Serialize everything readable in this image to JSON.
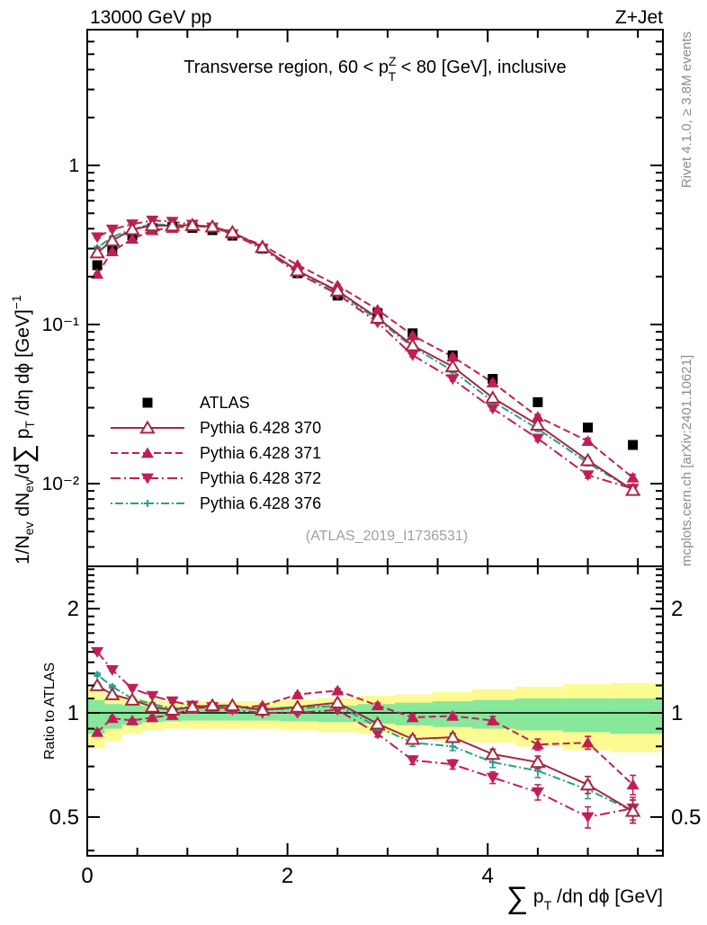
{
  "header": {
    "left": "13000 GeV pp",
    "right": "Z+Jet"
  },
  "side_texts": {
    "top": "Rivet 4.1.0, ≥ 3.8M events",
    "bottom": "mcplots.cern.ch [arXiv:2401.10621]"
  },
  "watermark": "(ATLAS_2019_I1736531)",
  "title_parts": {
    "pre": "Transverse region, 60 < p",
    "sup": "Z",
    "sub": "T",
    "post": " < 80 [GeV], inclusive"
  },
  "ylabel_parts": {
    "p1": "1/N",
    "s1": "ev",
    "p2": " dN",
    "s2": "ev",
    "p3": "/d",
    "sum": "∑",
    "p4": " p",
    "s3": "T",
    "p5": " /dη dϕ  [GeV]",
    "sup": "−1"
  },
  "ratio_ylabel": "Ratio to ATLAS",
  "xlabel_parts": {
    "sum": "∑",
    "p": " p",
    "sub": "T",
    "post": " /dη dϕ [GeV]"
  },
  "colors": {
    "atlas": "#000000",
    "p370": "#a4293f",
    "p371": "#c21e56",
    "p372": "#c21e56",
    "p376": "#26a08f",
    "band_yellow": "#fbfb91",
    "band_green": "#87e79b",
    "gray_text": "#8c8c8c"
  },
  "chart_data": {
    "type": "line",
    "title": "Transverse region, 60 < pT(Z) < 80 [GeV], inclusive",
    "xlabel": "sum pT /deta dphi [GeV]",
    "ylabel_main": "1/Nev dNev/d sum pT /deta dphi [GeV]^-1",
    "ylabel_ratio": "Ratio to ATLAS",
    "xlim": [
      0,
      5.75
    ],
    "ylim_main": [
      0.003,
      7.1
    ],
    "ylim_ratio": [
      0.39,
      2.65
    ],
    "yscale": "log",
    "xticks_labeled": [
      0,
      2,
      4
    ],
    "xtick_step": 0.5,
    "yticks_main": [
      {
        "v": 1,
        "label": "1"
      },
      {
        "v": 0.1,
        "label": "10⁻¹"
      },
      {
        "v": 0.01,
        "label": "10⁻²"
      }
    ],
    "yticks_ratio": [
      {
        "v": 2,
        "label": "2"
      },
      {
        "v": 1,
        "label": "1"
      },
      {
        "v": 0.5,
        "label": "0.5"
      }
    ],
    "x": [
      0.1,
      0.25,
      0.45,
      0.65,
      0.85,
      1.05,
      1.25,
      1.45,
      1.75,
      2.1,
      2.5,
      2.9,
      3.25,
      3.65,
      4.05,
      4.5,
      5.0,
      5.45
    ],
    "bin_edges": [
      0,
      0.175,
      0.35,
      0.55,
      0.75,
      0.95,
      1.15,
      1.35,
      1.6,
      1.925,
      2.3,
      2.7,
      3.075,
      3.45,
      3.85,
      4.275,
      4.75,
      5.225,
      5.75
    ],
    "ratio_err": [
      0.015,
      0.012,
      0.01,
      0.01,
      0.01,
      0.01,
      0.01,
      0.01,
      0.01,
      0.012,
      0.015,
      0.018,
      0.02,
      0.022,
      0.025,
      0.03,
      0.035,
      0.04
    ],
    "bands": {
      "yellow": [
        [
          0.79,
          1.18
        ],
        [
          0.83,
          1.13
        ],
        [
          0.87,
          1.1
        ],
        [
          0.89,
          1.09
        ],
        [
          0.9,
          1.08
        ],
        [
          0.9,
          1.08
        ],
        [
          0.9,
          1.08
        ],
        [
          0.9,
          1.08
        ],
        [
          0.9,
          1.08
        ],
        [
          0.89,
          1.09
        ],
        [
          0.88,
          1.1
        ],
        [
          0.87,
          1.12
        ],
        [
          0.85,
          1.13
        ],
        [
          0.83,
          1.15
        ],
        [
          0.82,
          1.17
        ],
        [
          0.8,
          1.19
        ],
        [
          0.78,
          1.21
        ],
        [
          0.77,
          1.22
        ]
      ],
      "green": [
        [
          0.87,
          1.09
        ],
        [
          0.9,
          1.06
        ],
        [
          0.925,
          1.05
        ],
        [
          0.94,
          1.045
        ],
        [
          0.945,
          1.04
        ],
        [
          0.95,
          1.04
        ],
        [
          0.95,
          1.04
        ],
        [
          0.95,
          1.04
        ],
        [
          0.95,
          1.04
        ],
        [
          0.945,
          1.045
        ],
        [
          0.94,
          1.05
        ],
        [
          0.93,
          1.06
        ],
        [
          0.92,
          1.07
        ],
        [
          0.91,
          1.08
        ],
        [
          0.9,
          1.09
        ],
        [
          0.89,
          1.1
        ],
        [
          0.88,
          1.1
        ],
        [
          0.87,
          1.1
        ]
      ]
    },
    "series": [
      {
        "id": "atlas",
        "label": "ATLAS",
        "marker": "square-filled",
        "line": "none",
        "values": [
          0.236,
          0.298,
          0.363,
          0.403,
          0.41,
          0.405,
          0.392,
          0.362,
          0.3,
          0.21,
          0.152,
          0.118,
          0.088,
          0.064,
          0.0455,
          0.0325,
          0.0225,
          0.0175
        ]
      },
      {
        "id": "p370",
        "label": "Pythia 6.428 370",
        "marker": "triangle-open",
        "line": "solid",
        "dash": "",
        "values": [
          0.283,
          0.337,
          0.396,
          0.419,
          0.418,
          0.421,
          0.412,
          0.38,
          0.306,
          0.218,
          0.163,
          0.11,
          0.0739,
          0.0544,
          0.0346,
          0.0234,
          0.014,
          0.0091
        ],
        "ratio": [
          1.2,
          1.13,
          1.09,
          1.04,
          1.02,
          1.04,
          1.05,
          1.05,
          1.02,
          1.04,
          1.07,
          0.93,
          0.84,
          0.85,
          0.76,
          0.72,
          0.62,
          0.52
        ]
      },
      {
        "id": "p371",
        "label": "Pythia 6.428 371",
        "marker": "triangle-filled",
        "line": "dashed",
        "dash": "8,4",
        "values": [
          0.208,
          0.288,
          0.345,
          0.391,
          0.404,
          0.417,
          0.408,
          0.373,
          0.315,
          0.237,
          0.176,
          0.124,
          0.0854,
          0.0627,
          0.0432,
          0.0263,
          0.0185,
          0.0109
        ],
        "ratio": [
          0.88,
          0.965,
          0.95,
          0.97,
          0.985,
          1.03,
          1.04,
          1.03,
          1.05,
          1.13,
          1.16,
          1.05,
          0.97,
          0.98,
          0.95,
          0.81,
          0.82,
          0.62
        ]
      },
      {
        "id": "p372",
        "label": "Pythia 6.428 372",
        "marker": "triangle-down-filled",
        "line": "dashdot",
        "dash": "11,4,2,4",
        "values": [
          0.354,
          0.396,
          0.427,
          0.451,
          0.443,
          0.425,
          0.408,
          0.369,
          0.3,
          0.21,
          0.155,
          0.103,
          0.0642,
          0.0454,
          0.0296,
          0.0192,
          0.0113,
          0.0093
        ],
        "ratio": [
          1.5,
          1.33,
          1.175,
          1.12,
          1.08,
          1.05,
          1.04,
          1.02,
          1.0,
          1.0,
          1.02,
          0.87,
          0.73,
          0.71,
          0.65,
          0.59,
          0.5,
          0.53
        ]
      },
      {
        "id": "p376",
        "label": "Pythia 6.428 376",
        "marker": "plus",
        "line": "dashdotdot",
        "dash": "2,3,9,3",
        "values": [
          0.304,
          0.355,
          0.399,
          0.427,
          0.422,
          0.421,
          0.412,
          0.376,
          0.306,
          0.216,
          0.16,
          0.107,
          0.0722,
          0.0512,
          0.0328,
          0.0221,
          0.0135,
          0.0091
        ],
        "ratio": [
          1.29,
          1.19,
          1.1,
          1.06,
          1.03,
          1.04,
          1.05,
          1.04,
          1.02,
          1.03,
          1.05,
          0.91,
          0.82,
          0.8,
          0.72,
          0.68,
          0.6,
          0.52
        ]
      }
    ],
    "legend_position": "left-middle",
    "grid": false
  }
}
